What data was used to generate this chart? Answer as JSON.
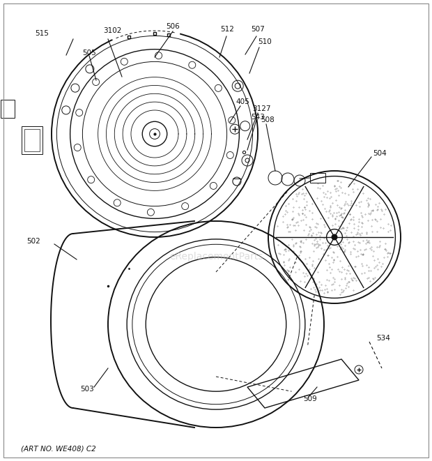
{
  "bg_color": "#ffffff",
  "line_color": "#111111",
  "fig_width": 6.2,
  "fig_height": 6.61,
  "dpi": 100,
  "bottom_text": "(ART NO. WE408) C2",
  "watermark": "eReplacementParts"
}
